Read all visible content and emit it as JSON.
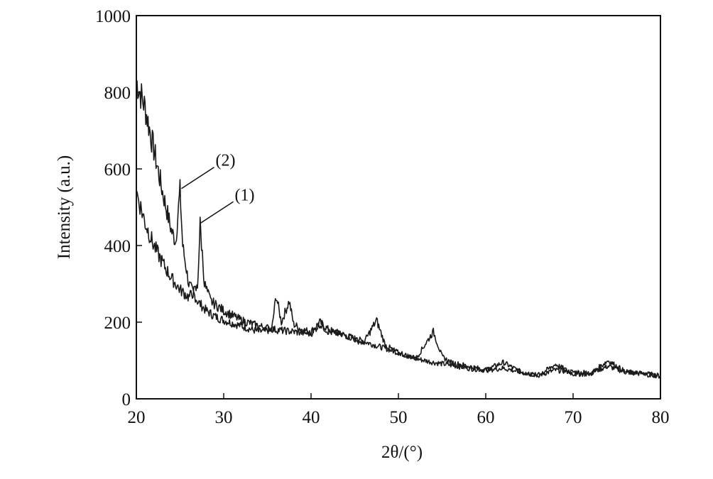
{
  "chart_data": {
    "type": "line",
    "xlabel": "2θ/(°)",
    "ylabel": "Intensity (a.u.)",
    "xlim": [
      20,
      80
    ],
    "ylim": [
      0,
      1000
    ],
    "x_ticks": [
      20,
      30,
      40,
      50,
      60,
      70,
      80
    ],
    "y_ticks": [
      0,
      200,
      400,
      600,
      800,
      1000
    ],
    "grid": false,
    "legend": "none",
    "line_color": "#1a1a1a",
    "annotations": [
      {
        "text": "(2)",
        "series": 0,
        "points_to": [
          25.0,
          545
        ]
      },
      {
        "text": "(1)",
        "series": 1,
        "points_to": [
          27.2,
          455
        ]
      }
    ],
    "series": [
      {
        "x": [
          20,
          21,
          22,
          23,
          24,
          24.5,
          25,
          25.3,
          26,
          27,
          28,
          29,
          30,
          32,
          34,
          35.5,
          36,
          36.6,
          37.5,
          38,
          39,
          40,
          41,
          42,
          44,
          46,
          48,
          50,
          52,
          54,
          56,
          58,
          60,
          62,
          64,
          66,
          68,
          70,
          72,
          74,
          76,
          78,
          80
        ],
        "y": [
          830,
          760,
          650,
          540,
          440,
          410,
          545,
          400,
          300,
          255,
          230,
          215,
          205,
          190,
          175,
          180,
          270,
          200,
          255,
          195,
          180,
          175,
          200,
          180,
          165,
          150,
          135,
          120,
          105,
          95,
          88,
          80,
          75,
          95,
          70,
          62,
          75,
          70,
          68,
          85,
          70,
          66,
          60
        ]
      },
      {
        "x": [
          20,
          21,
          22,
          23,
          24,
          25,
          26,
          27,
          27.3,
          27.8,
          28.5,
          30,
          32,
          34,
          36,
          38,
          40,
          41,
          42,
          44,
          46,
          47.5,
          48.5,
          50,
          52,
          54,
          55,
          56,
          58,
          60,
          62,
          64,
          66,
          68,
          70,
          72,
          74,
          76,
          78,
          80
        ],
        "y": [
          540,
          460,
          400,
          355,
          315,
          285,
          265,
          290,
          455,
          300,
          255,
          230,
          205,
          190,
          180,
          175,
          170,
          195,
          175,
          165,
          145,
          205,
          140,
          120,
          105,
          175,
          110,
          95,
          85,
          75,
          80,
          70,
          60,
          90,
          65,
          65,
          100,
          70,
          65,
          60
        ]
      }
    ]
  }
}
